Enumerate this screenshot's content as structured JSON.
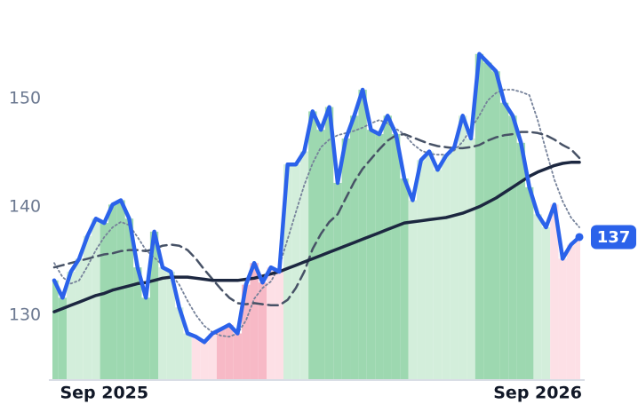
{
  "chart_data": {
    "type": "line",
    "categories": [
      null,
      null,
      null,
      null,
      null,
      null,
      "Sep 2025",
      null,
      null,
      null,
      null,
      null,
      null,
      null,
      null,
      null,
      null,
      null,
      null,
      null,
      null,
      null,
      null,
      null,
      null,
      null,
      null,
      null,
      null,
      null,
      null,
      null,
      null,
      null,
      null,
      null,
      null,
      null,
      null,
      null,
      null,
      null,
      null,
      null,
      null,
      null,
      null,
      null,
      null,
      null,
      null,
      null,
      null,
      null,
      null,
      null,
      null,
      null,
      "Sep 2026",
      null,
      null,
      null,
      null,
      null
    ],
    "series": [
      {
        "color": "#2b62ea",
        "style": "solid",
        "width": 4.5,
        "last_value_label": "137",
        "values": [
          133.2,
          131.6,
          134.0,
          135.2,
          137.3,
          138.9,
          138.5,
          140.2,
          140.6,
          138.9,
          134.4,
          131.6,
          137.7,
          134.4,
          134.0,
          130.7,
          128.3,
          128.0,
          127.5,
          128.3,
          128.7,
          129.1,
          128.3,
          132.8,
          134.8,
          133.0,
          134.4,
          134.0,
          143.9,
          143.9,
          145.1,
          148.8,
          147.1,
          149.2,
          142.2,
          146.3,
          148.4,
          150.8,
          147.1,
          146.7,
          148.4,
          146.7,
          142.6,
          140.6,
          144.3,
          145.1,
          143.4,
          144.7,
          145.5,
          148.4,
          146.3,
          154.1,
          153.3,
          152.5,
          149.6,
          148.4,
          145.9,
          141.8,
          139.3,
          138.1,
          140.2,
          135.2,
          136.5,
          137.2
        ]
      },
      {
        "color": "#1c2740",
        "style": "solid",
        "width": 3.5,
        "values": [
          130.3,
          130.6,
          130.9,
          131.2,
          131.5,
          131.8,
          132.0,
          132.3,
          132.5,
          132.7,
          132.9,
          133.0,
          133.2,
          133.4,
          133.5,
          133.5,
          133.5,
          133.4,
          133.3,
          133.2,
          133.2,
          133.2,
          133.2,
          133.3,
          133.4,
          133.6,
          133.8,
          134.0,
          134.3,
          134.6,
          134.9,
          135.2,
          135.5,
          135.8,
          136.1,
          136.4,
          136.7,
          137.0,
          137.3,
          137.6,
          137.9,
          138.2,
          138.5,
          138.6,
          138.7,
          138.8,
          138.9,
          139.0,
          139.2,
          139.4,
          139.7,
          140.0,
          140.4,
          140.8,
          141.3,
          141.8,
          142.3,
          142.8,
          143.2,
          143.5,
          143.8,
          144.0,
          144.1,
          144.1
        ]
      },
      {
        "color": "#475266",
        "style": "dashed",
        "width": 2.5,
        "values": [
          134.4,
          134.6,
          134.8,
          135.0,
          135.2,
          135.4,
          135.6,
          135.7,
          135.9,
          136.0,
          136.0,
          135.9,
          136.1,
          136.4,
          136.5,
          136.4,
          136.0,
          135.2,
          134.2,
          133.3,
          132.4,
          131.6,
          131.1,
          131.0,
          131.1,
          131.0,
          130.9,
          130.9,
          131.4,
          132.5,
          134.0,
          136.1,
          137.5,
          138.6,
          139.3,
          140.8,
          142.3,
          143.5,
          144.4,
          145.3,
          146.1,
          146.6,
          146.7,
          146.4,
          146.1,
          145.8,
          145.6,
          145.5,
          145.4,
          145.4,
          145.5,
          145.7,
          146.1,
          146.4,
          146.6,
          146.7,
          146.9,
          146.9,
          146.8,
          146.6,
          146.2,
          145.7,
          145.3,
          144.5
        ]
      },
      {
        "color": "#76829a",
        "style": "dotted",
        "width": 1.8,
        "values": [
          134.8,
          133.5,
          132.9,
          133.2,
          134.5,
          136.0,
          137.2,
          138.1,
          138.6,
          138.3,
          137.2,
          136.0,
          135.3,
          134.6,
          133.8,
          132.8,
          131.3,
          130.0,
          129.0,
          128.4,
          128.1,
          128.0,
          128.3,
          129.5,
          131.5,
          132.5,
          133.1,
          134.5,
          137.0,
          139.5,
          142.0,
          144.0,
          145.5,
          146.2,
          146.6,
          146.8,
          147.0,
          147.3,
          147.7,
          148.0,
          147.7,
          147.2,
          146.7,
          145.8,
          145.2,
          144.9,
          144.8,
          144.8,
          145.2,
          146.0,
          147.2,
          148.4,
          149.8,
          150.5,
          150.8,
          150.8,
          150.6,
          150.3,
          148.0,
          145.2,
          142.5,
          140.5,
          139.0,
          138.1
        ]
      }
    ],
    "regime_colors": [
      "#9dd8b0",
      "#9dd8b0",
      "#d3eedb",
      "#d3eedb",
      "#d3eedb",
      "#d3eedb",
      "#9dd8b0",
      "#9dd8b0",
      "#9dd8b0",
      "#9dd8b0",
      "#9dd8b0",
      "#9dd8b0",
      "#9dd8b0",
      "#d3eedb",
      "#d3eedb",
      "#d3eedb",
      "#d3eedb",
      "#fde0e6",
      "#fde0e6",
      "#fde0e6",
      "#f7b9c6",
      "#f7b9c6",
      "#f7b9c6",
      "#f7b9c6",
      "#f7b9c6",
      "#f7b9c6",
      "#fde0e6",
      "#fde0e6",
      "#d3eedb",
      "#d3eedb",
      "#d3eedb",
      "#9dd8b0",
      "#9dd8b0",
      "#9dd8b0",
      "#9dd8b0",
      "#9dd8b0",
      "#9dd8b0",
      "#9dd8b0",
      "#9dd8b0",
      "#9dd8b0",
      "#9dd8b0",
      "#9dd8b0",
      "#9dd8b0",
      "#d3eedb",
      "#d3eedb",
      "#d3eedb",
      "#d3eedb",
      "#d3eedb",
      "#d3eedb",
      "#d3eedb",
      "#d3eedb",
      "#9dd8b0",
      "#9dd8b0",
      "#9dd8b0",
      "#9dd8b0",
      "#9dd8b0",
      "#9dd8b0",
      "#9dd8b0",
      "#d3eedb",
      "#d3eedb",
      "#fde0e6",
      "#fde0e6",
      "#fde0e6",
      "#fde0e6"
    ],
    "ylim": [
      124,
      158
    ],
    "yticks": [
      130,
      140,
      150
    ],
    "grid": false
  }
}
